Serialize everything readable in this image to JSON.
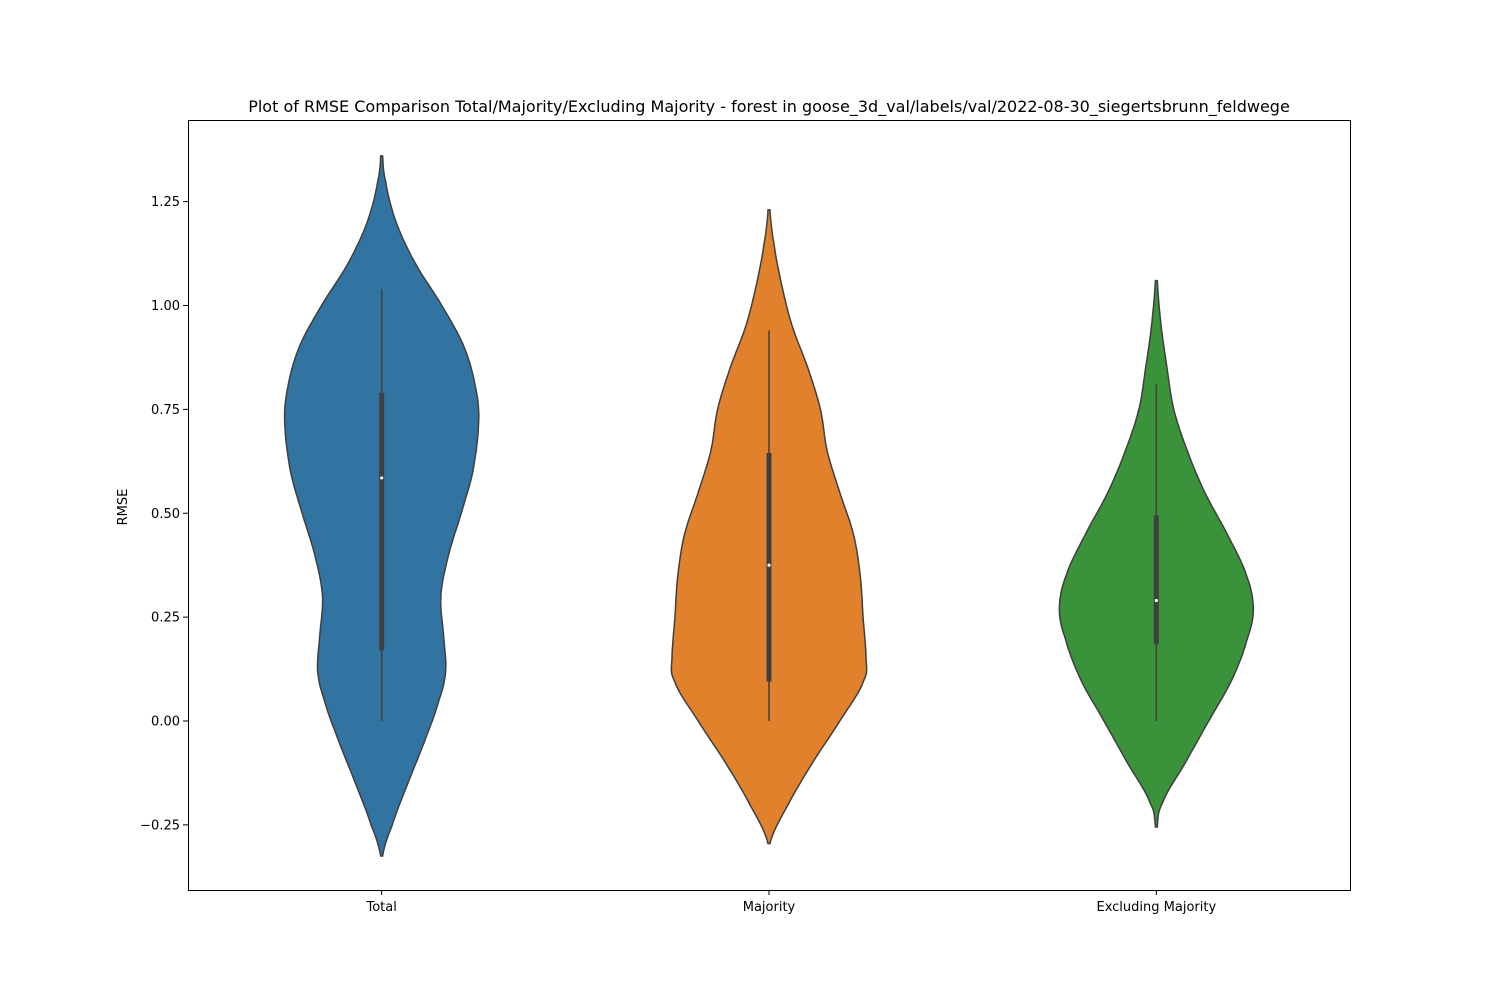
{
  "chart_data": {
    "type": "violin",
    "title": "Plot of RMSE Comparison Total/Majority/Excluding Majority - forest in goose_3d_val/labels/val/2022-08-30_siegertsbrunn_feldwege",
    "xlabel": "",
    "ylabel": "RMSE",
    "ylim": [
      -0.4,
      1.45
    ],
    "yticks": [
      -0.25,
      0.0,
      0.25,
      0.5,
      0.75,
      1.0,
      1.25
    ],
    "ytick_labels": [
      "−0.25",
      "0.00",
      "0.25",
      "0.50",
      "0.75",
      "1.00",
      "1.25"
    ],
    "categories": [
      "Total",
      "Majority",
      "Excluding Majority"
    ],
    "grid": false,
    "series": [
      {
        "category": "Total",
        "color": "#3274a1",
        "kde_range": [
          -0.325,
          1.36
        ],
        "density_profile": [
          [
            -0.325,
            0.01
          ],
          [
            -0.25,
            0.11
          ],
          [
            -0.15,
            0.27
          ],
          [
            -0.05,
            0.44
          ],
          [
            0.05,
            0.59
          ],
          [
            0.12,
            0.66
          ],
          [
            0.2,
            0.64
          ],
          [
            0.3,
            0.61
          ],
          [
            0.4,
            0.69
          ],
          [
            0.5,
            0.82
          ],
          [
            0.6,
            0.94
          ],
          [
            0.72,
            1.0
          ],
          [
            0.8,
            0.97
          ],
          [
            0.9,
            0.85
          ],
          [
            1.0,
            0.62
          ],
          [
            1.1,
            0.35
          ],
          [
            1.2,
            0.15
          ],
          [
            1.3,
            0.04
          ],
          [
            1.36,
            0.01
          ]
        ],
        "median": 0.585,
        "q1": 0.17,
        "q3": 0.79,
        "whisker_low": 0.0,
        "whisker_high": 1.04
      },
      {
        "category": "Majority",
        "color": "#e1812c",
        "kde_range": [
          -0.295,
          1.23
        ],
        "density_profile": [
          [
            -0.295,
            0.01
          ],
          [
            -0.2,
            0.2
          ],
          [
            -0.1,
            0.45
          ],
          [
            0.0,
            0.73
          ],
          [
            0.1,
            0.98
          ],
          [
            0.15,
            1.0
          ],
          [
            0.25,
            0.97
          ],
          [
            0.35,
            0.94
          ],
          [
            0.45,
            0.87
          ],
          [
            0.55,
            0.73
          ],
          [
            0.65,
            0.6
          ],
          [
            0.75,
            0.53
          ],
          [
            0.85,
            0.4
          ],
          [
            0.95,
            0.24
          ],
          [
            1.05,
            0.13
          ],
          [
            1.15,
            0.05
          ],
          [
            1.23,
            0.01
          ]
        ],
        "median": 0.375,
        "q1": 0.095,
        "q3": 0.645,
        "whisker_low": 0.0,
        "whisker_high": 0.94
      },
      {
        "category": "Excluding Majority",
        "color": "#3a923a",
        "kde_range": [
          -0.255,
          1.06
        ],
        "density_profile": [
          [
            -0.255,
            0.01
          ],
          [
            -0.2,
            0.06
          ],
          [
            -0.1,
            0.3
          ],
          [
            0.0,
            0.54
          ],
          [
            0.1,
            0.78
          ],
          [
            0.2,
            0.94
          ],
          [
            0.27,
            1.0
          ],
          [
            0.35,
            0.93
          ],
          [
            0.45,
            0.73
          ],
          [
            0.55,
            0.5
          ],
          [
            0.65,
            0.32
          ],
          [
            0.75,
            0.18
          ],
          [
            0.85,
            0.11
          ],
          [
            0.95,
            0.05
          ],
          [
            1.06,
            0.01
          ]
        ],
        "median": 0.29,
        "q1": 0.185,
        "q3": 0.495,
        "whisker_low": 0.0,
        "whisker_high": 0.81
      }
    ]
  }
}
